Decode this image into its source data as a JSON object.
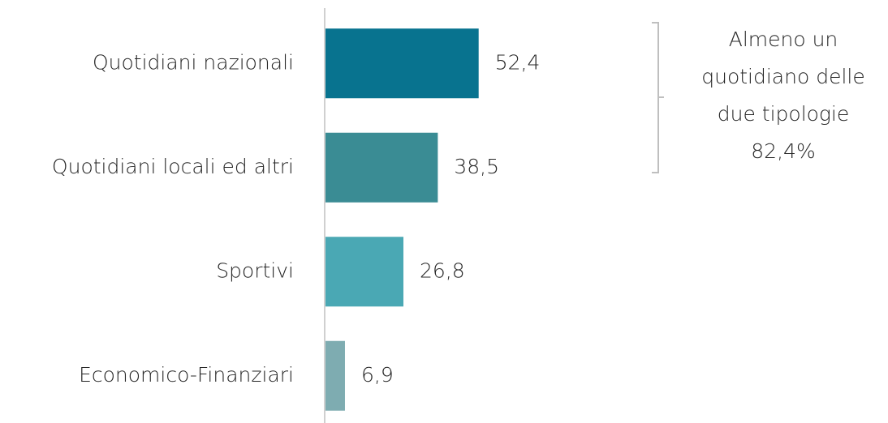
{
  "chart_data": {
    "type": "barh",
    "categories": [
      "Quotidiani nazionali",
      "Quotidiani locali ed altri",
      "Sportivi",
      "Economico-Finanziari"
    ],
    "values": [
      52.4,
      38.5,
      26.8,
      6.9
    ],
    "value_labels": [
      "52,4",
      "38,5",
      "26,8",
      "6,9"
    ],
    "colors": [
      "#08738f",
      "#3a8c94",
      "#4aa8b4",
      "#7eacb1"
    ],
    "xlim": [
      0,
      100
    ],
    "annotation": [
      "Almeno un",
      "quotidiano delle",
      "due tipologie",
      "82,4%"
    ]
  }
}
